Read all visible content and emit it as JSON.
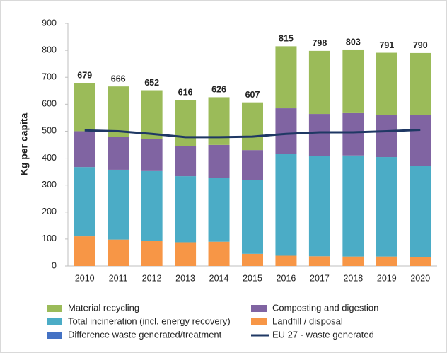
{
  "chart_data": {
    "type": "bar",
    "stacked": true,
    "y_label": "Kg per capita",
    "categories": [
      "2010",
      "2011",
      "2012",
      "2013",
      "2014",
      "2015",
      "2016",
      "2017",
      "2018",
      "2019",
      "2020"
    ],
    "ylim": [
      0,
      900
    ],
    "yticks": [
      0,
      100,
      200,
      300,
      400,
      500,
      600,
      700,
      800,
      900
    ],
    "series": [
      {
        "name": "Landfill / disposal",
        "color": "#f79646",
        "values": [
          110,
          98,
          93,
          88,
          90,
          45,
          38,
          36,
          35,
          35,
          32
        ]
      },
      {
        "name": "Difference waste generated/treatment",
        "color": "#4472c4",
        "values": [
          0,
          0,
          0,
          0,
          0,
          0,
          0,
          0,
          0,
          0,
          0
        ]
      },
      {
        "name": "Total incineration (incl. energy recovery)",
        "color": "#4bacc6",
        "values": [
          257,
          259,
          259,
          245,
          238,
          275,
          379,
          373,
          375,
          369,
          340
        ]
      },
      {
        "name": "Composting and digestion",
        "color": "#8064a2",
        "values": [
          133,
          123,
          118,
          113,
          121,
          110,
          168,
          155,
          157,
          155,
          187
        ]
      },
      {
        "name": "Material recycling",
        "color": "#9bbb59",
        "values": [
          179,
          186,
          182,
          170,
          177,
          177,
          230,
          234,
          236,
          232,
          231
        ]
      },
      {
        "name": "EU 27 - waste generated",
        "type": "line",
        "color": "#1f3864",
        "values": [
          503,
          500,
          490,
          478,
          478,
          480,
          490,
          496,
          496,
          500,
          505
        ]
      }
    ],
    "totals": [
      679,
      666,
      652,
      616,
      626,
      607,
      815,
      798,
      803,
      791,
      790
    ]
  }
}
